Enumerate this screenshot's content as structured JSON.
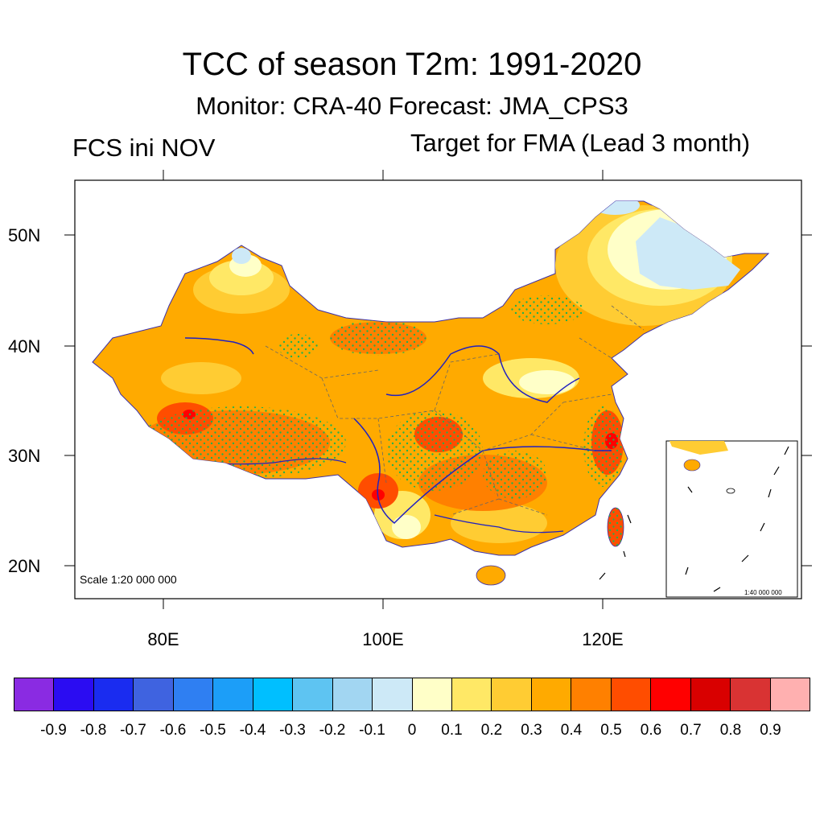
{
  "title": "TCC of season T2m: 1991-2020",
  "subtitle": "Monitor: CRA-40   Forecast: JMA_CPS3",
  "left_label": "FCS ini NOV",
  "right_label": "Target for FMA (Lead 3 month)",
  "map": {
    "region": "China",
    "variable": "Temporal correlation coefficient of seasonal 2m temperature",
    "lat_ticks": [
      "50N",
      "40N",
      "30N",
      "20N"
    ],
    "lon_ticks": [
      "80E",
      "100E",
      "120E"
    ],
    "lat_range": [
      17,
      55
    ],
    "lon_range": [
      72,
      136
    ],
    "scale_label": "Scale 1:20 000 000",
    "inset_scale_label": "1:40 000 000",
    "stipple_color": "#22b14c"
  },
  "colorbar": {
    "colors": [
      "#8a2be2",
      "#2b0cf2",
      "#1a2cf0",
      "#3f63e0",
      "#2f7ff2",
      "#1c9ef8",
      "#00bfff",
      "#5ec4f2",
      "#a2d6f2",
      "#cde9f7",
      "#ffffc8",
      "#ffe866",
      "#ffcc33",
      "#ffaa00",
      "#ff8000",
      "#ff4d00",
      "#ff0000",
      "#d90000",
      "#d93333",
      "#ffb0b0"
    ],
    "labels": [
      "-0.9",
      "-0.8",
      "-0.7",
      "-0.6",
      "-0.5",
      "-0.4",
      "-0.3",
      "-0.2",
      "-0.1",
      "0",
      "0.1",
      "0.2",
      "0.3",
      "0.4",
      "0.5",
      "0.6",
      "0.7",
      "0.8",
      "0.9"
    ]
  }
}
